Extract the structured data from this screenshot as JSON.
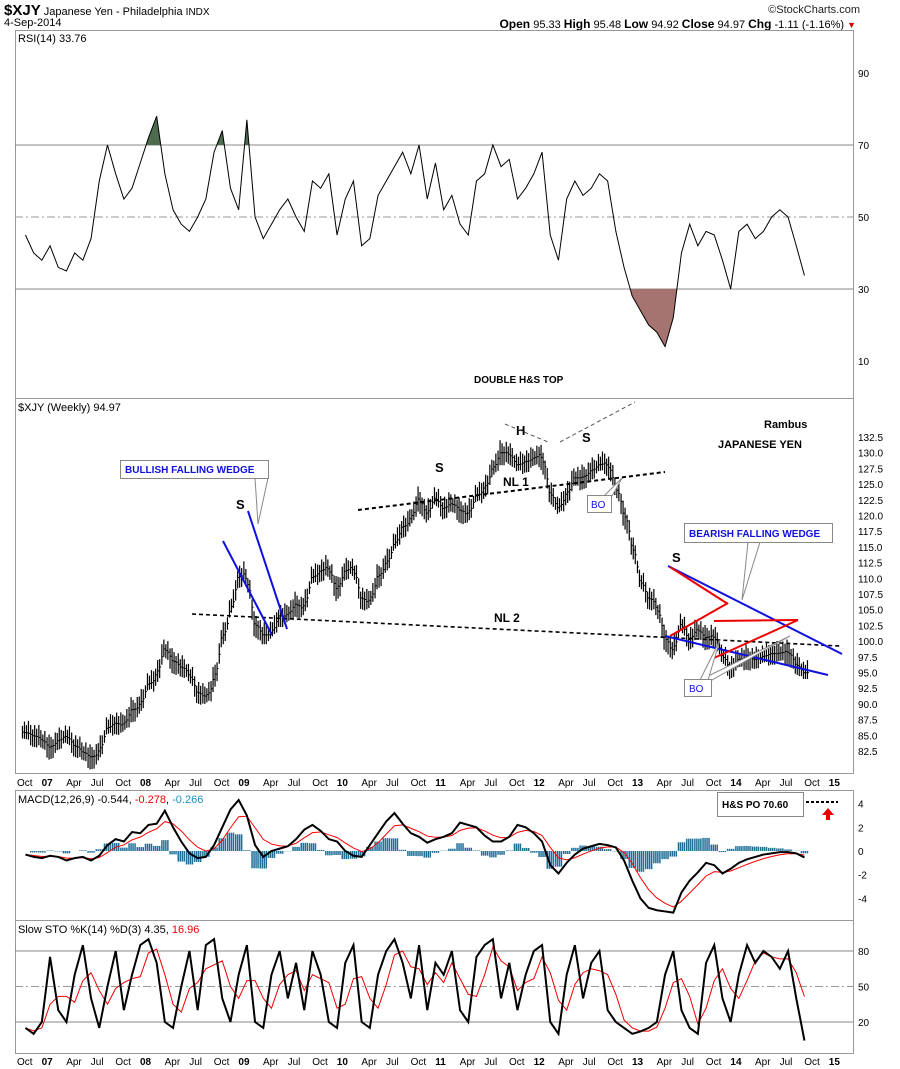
{
  "header": {
    "symbol": "$XJY",
    "name": "Japanese Yen - Philadelphia",
    "exchange": "INDX",
    "date": "4-Sep-2014",
    "copyright": "©StockCharts.com",
    "open_label": "Open",
    "open": "95.33",
    "high_label": "High",
    "high": "95.48",
    "low_label": "Low",
    "low": "94.92",
    "close_label": "Close",
    "close": "94.97",
    "chg_label": "Chg",
    "chg": "-1.11 (-1.16%)",
    "down_color": "#cc0000"
  },
  "annotations": {
    "double_top": "DOUBLE H&S TOP",
    "h": "H",
    "s": "S",
    "nl1": "NL 1",
    "nl2": "NL 2",
    "bullish": "BULLISH FALLING WEDGE",
    "bearish": "BEARISH FALLING WEDGE",
    "author": "Rambus",
    "subject": "JAPANESE YEN",
    "bo": "BO",
    "po": "H&S PO 70.60"
  },
  "chart_data": [
    {
      "type": "line",
      "title": "RSI(14) 33.76",
      "yticks": [
        90,
        70,
        50,
        30,
        10
      ],
      "ylim": [
        0,
        100
      ],
      "overbought": 70,
      "oversold": 30,
      "values": [
        45,
        40,
        38,
        42,
        36,
        35,
        40,
        38,
        44,
        60,
        70,
        62,
        55,
        58,
        65,
        72,
        78,
        62,
        52,
        48,
        46,
        50,
        55,
        68,
        74,
        58,
        52,
        77,
        50,
        44,
        48,
        52,
        55,
        50,
        46,
        60,
        58,
        62,
        45,
        55,
        60,
        42,
        44,
        56,
        60,
        64,
        68,
        62,
        70,
        55,
        65,
        52,
        56,
        48,
        45,
        60,
        62,
        70,
        64,
        66,
        55,
        58,
        62,
        68,
        45,
        38,
        55,
        60,
        56,
        58,
        62,
        60,
        46,
        36,
        28,
        24,
        20,
        18,
        14,
        22,
        40,
        48,
        42,
        46,
        45,
        38,
        30,
        46,
        48,
        44,
        46,
        50,
        52,
        50,
        42,
        33.76
      ]
    },
    {
      "type": "bar",
      "title": "$XJY (Weekly) 94.97",
      "x_start": "Oct 2006",
      "x_step": "month",
      "yticks": [
        132.5,
        130,
        127.5,
        125,
        122.5,
        120,
        117.5,
        115,
        112.5,
        110,
        107.5,
        105,
        102.5,
        100,
        97.5,
        95,
        92.5,
        90,
        87.5,
        85,
        82.5
      ],
      "ylim": [
        80,
        134
      ],
      "values": [
        85.5,
        85,
        84.5,
        83,
        84,
        85,
        83.5,
        82.5,
        81.5,
        82,
        86,
        87,
        86.5,
        89,
        89.5,
        93,
        94,
        99,
        97,
        96,
        95,
        92,
        91,
        93,
        100,
        104,
        110,
        111,
        103,
        101,
        101,
        104,
        104,
        106,
        105,
        110,
        111,
        112,
        108,
        111,
        112,
        107,
        106,
        110,
        112,
        115,
        118,
        119,
        123,
        120,
        123,
        121,
        122,
        121,
        120,
        123,
        124,
        127,
        130,
        130,
        128,
        128.5,
        129,
        130,
        124,
        121,
        123,
        126,
        126,
        127,
        128,
        128.5,
        125,
        121,
        116,
        110,
        107,
        106,
        101,
        98,
        103,
        100,
        102,
        100.5,
        101,
        98,
        95.5,
        97,
        97.5,
        97,
        97.5,
        98,
        98,
        98.5,
        96.5,
        94.97
      ]
    },
    {
      "type": "line",
      "title": "MACD(12,26,9)",
      "legend": [
        "-0.544",
        "-0.278",
        "-0.266"
      ],
      "yticks": [
        4,
        2,
        0,
        -2,
        -4
      ],
      "macd": [
        -0.3,
        -0.5,
        -0.6,
        -0.4,
        -0.5,
        -0.8,
        -0.6,
        -0.5,
        -0.8,
        -0.4,
        0.5,
        1.0,
        0.8,
        1.6,
        1.5,
        2.2,
        2.3,
        3.4,
        2.0,
        0.8,
        -0.2,
        -0.6,
        -0.5,
        0.5,
        2.0,
        3.5,
        4.3,
        3.0,
        0.5,
        -0.5,
        0,
        0.2,
        0.4,
        1.0,
        1.8,
        2.2,
        1.7,
        1.0,
        0.8,
        0,
        -0.4,
        -0.5,
        0.5,
        1.5,
        2.5,
        3.2,
        2.3,
        1.5,
        1.2,
        0.7,
        1.0,
        1.2,
        1.5,
        2.4,
        2.2,
        2.0,
        1.3,
        0.8,
        0.8,
        1.2,
        2.2,
        2.0,
        1.5,
        0.8,
        -1.2,
        -1.9,
        -1.0,
        -0.3,
        0.2,
        0.4,
        0.6,
        0.5,
        0.3,
        -0.8,
        -2.5,
        -4.0,
        -4.8,
        -5.0,
        -5.1,
        -5.2,
        -3.5,
        -2.5,
        -1.8,
        -1.0,
        -1.2,
        -1.9,
        -1.5,
        -1.0,
        -0.7,
        -0.5,
        -0.3,
        -0.2,
        -0.1,
        -0.1,
        -0.2,
        -0.544
      ],
      "colors": {
        "macd": "#000000",
        "signal": "#ff0000",
        "hist": "#1f6f99"
      }
    },
    {
      "type": "line",
      "title": "Slow STO %K(14) %D(3)",
      "legend": [
        "4.35",
        "16.96"
      ],
      "yticks": [
        80,
        50,
        20
      ],
      "k": [
        15,
        10,
        20,
        75,
        30,
        20,
        60,
        85,
        40,
        15,
        50,
        80,
        30,
        60,
        85,
        90,
        70,
        20,
        15,
        50,
        80,
        30,
        85,
        90,
        40,
        20,
        60,
        85,
        20,
        15,
        60,
        80,
        40,
        70,
        30,
        80,
        60,
        20,
        15,
        70,
        85,
        20,
        15,
        60,
        80,
        90,
        70,
        40,
        85,
        30,
        70,
        60,
        80,
        30,
        20,
        75,
        85,
        90,
        40,
        70,
        30,
        60,
        80,
        85,
        20,
        10,
        60,
        85,
        40,
        70,
        80,
        30,
        20,
        15,
        10,
        12,
        15,
        20,
        60,
        80,
        30,
        15,
        10,
        70,
        85,
        40,
        20,
        60,
        85,
        70,
        80,
        75,
        65,
        80,
        40,
        4.35
      ]
    }
  ],
  "xaxis_labels": [
    "Oct",
    "07",
    "Apr",
    "Jul",
    "Oct",
    "08",
    "Apr",
    "Jul",
    "Oct",
    "09",
    "Apr",
    "Jul",
    "Oct",
    "10",
    "Apr",
    "Jul",
    "Oct",
    "11",
    "Apr",
    "Jul",
    "Oct",
    "12",
    "Apr",
    "Jul",
    "Oct",
    "13",
    "Apr",
    "Jul",
    "Oct",
    "14",
    "Apr",
    "Jul",
    "Oct",
    "15"
  ]
}
